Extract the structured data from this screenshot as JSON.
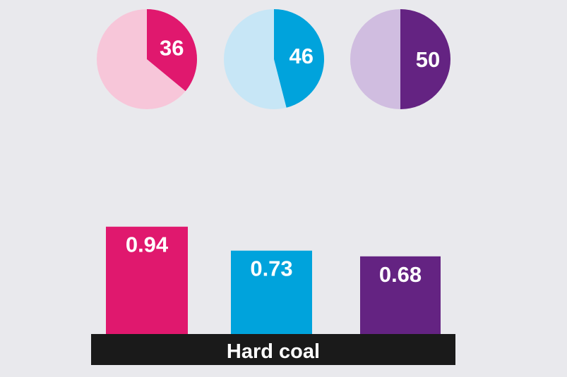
{
  "chart_data": [
    {
      "type": "pie",
      "charts": [
        {
          "value": 36,
          "label": "36",
          "color": "#e0186e",
          "rest_color": "#f7c6d9"
        },
        {
          "value": 46,
          "label": "46",
          "color": "#00a3dc",
          "rest_color": "#c7e6f6"
        },
        {
          "value": 50,
          "label": "50",
          "color": "#642382",
          "rest_color": "#d0bde0"
        }
      ]
    },
    {
      "type": "bar",
      "categories": [
        "Hard coal"
      ],
      "series": [
        {
          "values": [
            0.94
          ],
          "labels": [
            "0.94"
          ],
          "color": "#e0186e"
        },
        {
          "values": [
            0.73
          ],
          "labels": [
            "0.73"
          ],
          "color": "#00a3dc"
        },
        {
          "values": [
            0.68
          ],
          "labels": [
            "0.68"
          ],
          "color": "#642382"
        }
      ],
      "category_label": "Hard coal",
      "category_band_color": "#1a1a1a",
      "ylim": [
        0,
        1
      ]
    }
  ]
}
